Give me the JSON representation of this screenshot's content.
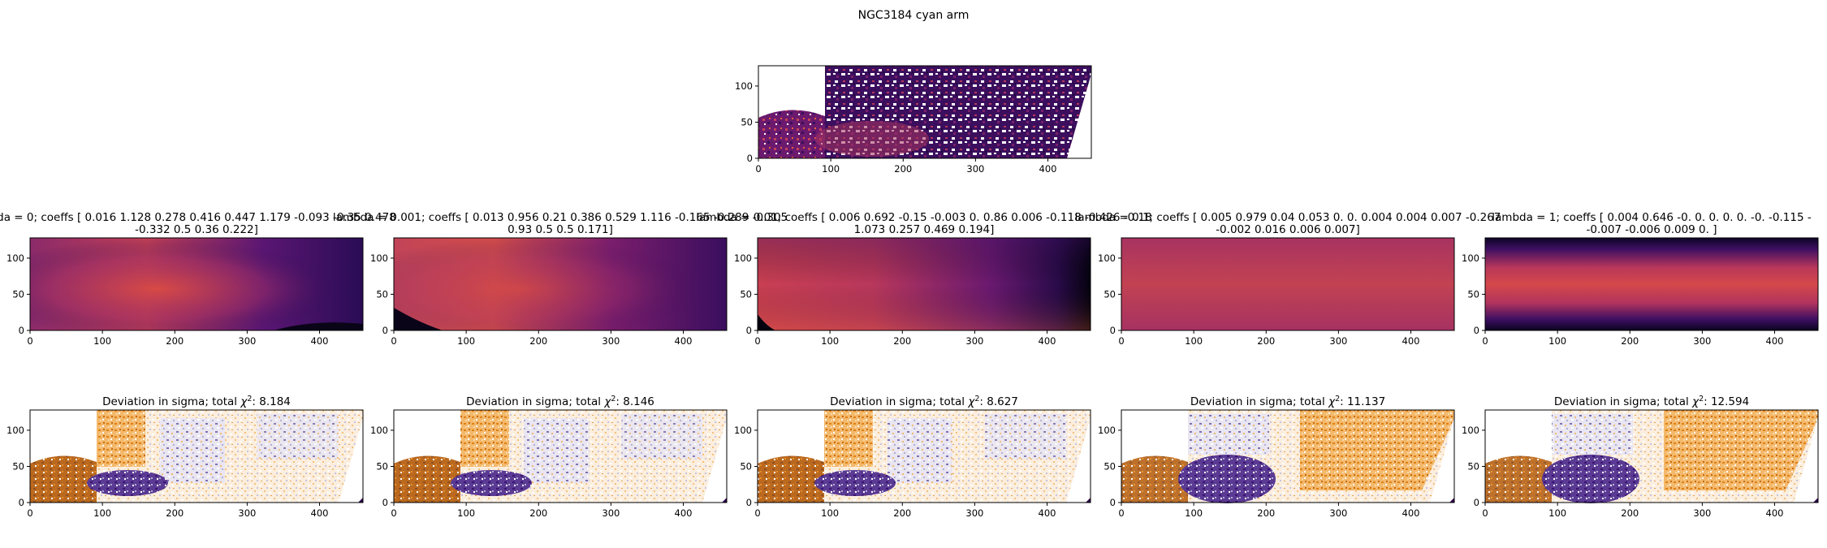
{
  "figure": {
    "suptitle": "NGC3184 cyan arm",
    "colors": {
      "colormap_data": [
        "#000004",
        "#1b0c41",
        "#4a0c6b",
        "#781c6d",
        "#a52c60",
        "#cf4446",
        "#ed6925",
        "#fb9b06",
        "#f7d13d",
        "#fcffa4"
      ],
      "colormap_deviation": [
        "#2d004b",
        "#542788",
        "#8073ac",
        "#b2abd2",
        "#d8daeb",
        "#f7f7f7",
        "#fee0b6",
        "#fdb863",
        "#e08214",
        "#b35806",
        "#7f3b08"
      ]
    }
  },
  "chart_data": [
    {
      "id": "data",
      "type": "heatmap",
      "title": "",
      "xlabel": "",
      "ylabel": "",
      "xlim": [
        0,
        460
      ],
      "ylim": [
        0,
        128
      ],
      "xticks": [
        "0",
        "100",
        "200",
        "300",
        "400"
      ],
      "yticks": [
        "0",
        "50",
        "100"
      ],
      "colormap": "inferno",
      "description_values": "observed intensity map, masked (white) outside the arm region"
    },
    {
      "id": "model-1",
      "type": "heatmap",
      "title_line1": "da = 0; coeffs [ 0.016  1.128  0.278  0.416  0.447  1.179 -0.093 -0.35  0.478",
      "title_line2": "-0.332  0.5    0.36   0.222]",
      "xlim": [
        0,
        460
      ],
      "ylim": [
        0,
        128
      ],
      "xticks": [
        "0",
        "100",
        "200",
        "300",
        "400"
      ],
      "yticks": [
        "0",
        "50",
        "100"
      ],
      "colormap": "inferno"
    },
    {
      "id": "model-2",
      "type": "heatmap",
      "title_line1": "lambda = 0.001; coeffs [ 0.013  0.956  0.21   0.386  0.529  1.116 -0.165 -0.289 -0.305",
      "title_line2": "0.93   0.5    0.5    0.171]",
      "xlim": [
        0,
        460
      ],
      "ylim": [
        0,
        128
      ],
      "xticks": [
        "0",
        "100",
        "200",
        "300",
        "400"
      ],
      "yticks": [
        "0",
        "50",
        "100"
      ],
      "colormap": "inferno"
    },
    {
      "id": "model-3",
      "type": "heatmap",
      "title_line1": "lambda = 0.01; coeffs [ 0.006  0.692 -0.15  -0.003  0.     0.86   0.006 -0.118 -0.426 -0.18",
      "title_line2": "1.073  0.257  0.469  0.194]",
      "xlim": [
        0,
        460
      ],
      "ylim": [
        0,
        128
      ],
      "xticks": [
        "0",
        "100",
        "200",
        "300",
        "400"
      ],
      "yticks": [
        "0",
        "50",
        "100"
      ],
      "colormap": "inferno"
    },
    {
      "id": "model-4",
      "type": "heatmap",
      "title_line1": "lambda = 0.1; coeffs [ 0.005  0.979  0.04   0.053  0.     0.     0.004  0.004  0.007 -0.267",
      "title_line2": "-0.002  0.016  0.006  0.007]",
      "xlim": [
        0,
        460
      ],
      "ylim": [
        0,
        128
      ],
      "xticks": [
        "0",
        "100",
        "200",
        "300",
        "400"
      ],
      "yticks": [
        "0",
        "50",
        "100"
      ],
      "colormap": "inferno"
    },
    {
      "id": "model-5",
      "type": "heatmap",
      "title_line1": "lambda = 1; coeffs [ 0.004  0.646 -0.     0.     0.     0.     0.    -0.     -0.115 -",
      "title_line2": "-0.007 -0.006  0.009  0.   ]",
      "xlim": [
        0,
        460
      ],
      "ylim": [
        0,
        128
      ],
      "xticks": [
        "0",
        "100",
        "200",
        "300",
        "400"
      ],
      "yticks": [
        "0",
        "50",
        "100"
      ],
      "colormap": "inferno"
    },
    {
      "id": "dev-1",
      "type": "heatmap",
      "title_prefix": "Deviation in sigma; total ",
      "title_symbol": "χ",
      "title_sup": "2",
      "title_suffix": ": 8.184",
      "chi2": 8.184,
      "xlim": [
        0,
        460
      ],
      "ylim": [
        0,
        128
      ],
      "xticks": [
        "0",
        "100",
        "200",
        "300",
        "400"
      ],
      "yticks": [
        "0",
        "50",
        "100"
      ],
      "colormap": "PuOr"
    },
    {
      "id": "dev-2",
      "type": "heatmap",
      "title_prefix": "Deviation in sigma; total ",
      "title_symbol": "χ",
      "title_sup": "2",
      "title_suffix": ": 8.146",
      "chi2": 8.146,
      "xlim": [
        0,
        460
      ],
      "ylim": [
        0,
        128
      ],
      "xticks": [
        "0",
        "100",
        "200",
        "300",
        "400"
      ],
      "yticks": [
        "0",
        "50",
        "100"
      ],
      "colormap": "PuOr"
    },
    {
      "id": "dev-3",
      "type": "heatmap",
      "title_prefix": "Deviation in sigma; total ",
      "title_symbol": "χ",
      "title_sup": "2",
      "title_suffix": ": 8.627",
      "chi2": 8.627,
      "xlim": [
        0,
        460
      ],
      "ylim": [
        0,
        128
      ],
      "xticks": [
        "0",
        "100",
        "200",
        "300",
        "400"
      ],
      "yticks": [
        "0",
        "50",
        "100"
      ],
      "colormap": "PuOr"
    },
    {
      "id": "dev-4",
      "type": "heatmap",
      "title_prefix": "Deviation in sigma; total ",
      "title_symbol": "χ",
      "title_sup": "2",
      "title_suffix": ": 11.137",
      "chi2": 11.137,
      "xlim": [
        0,
        460
      ],
      "ylim": [
        0,
        128
      ],
      "xticks": [
        "0",
        "100",
        "200",
        "300",
        "400"
      ],
      "yticks": [
        "0",
        "50",
        "100"
      ],
      "colormap": "PuOr"
    },
    {
      "id": "dev-5",
      "type": "heatmap",
      "title_prefix": "Deviation in sigma; total ",
      "title_symbol": "χ",
      "title_sup": "2",
      "title_suffix": ": 12.594",
      "chi2": 12.594,
      "xlim": [
        0,
        460
      ],
      "ylim": [
        0,
        128
      ],
      "xticks": [
        "0",
        "100",
        "200",
        "300",
        "400"
      ],
      "yticks": [
        "0",
        "50",
        "100"
      ],
      "colormap": "PuOr"
    }
  ]
}
